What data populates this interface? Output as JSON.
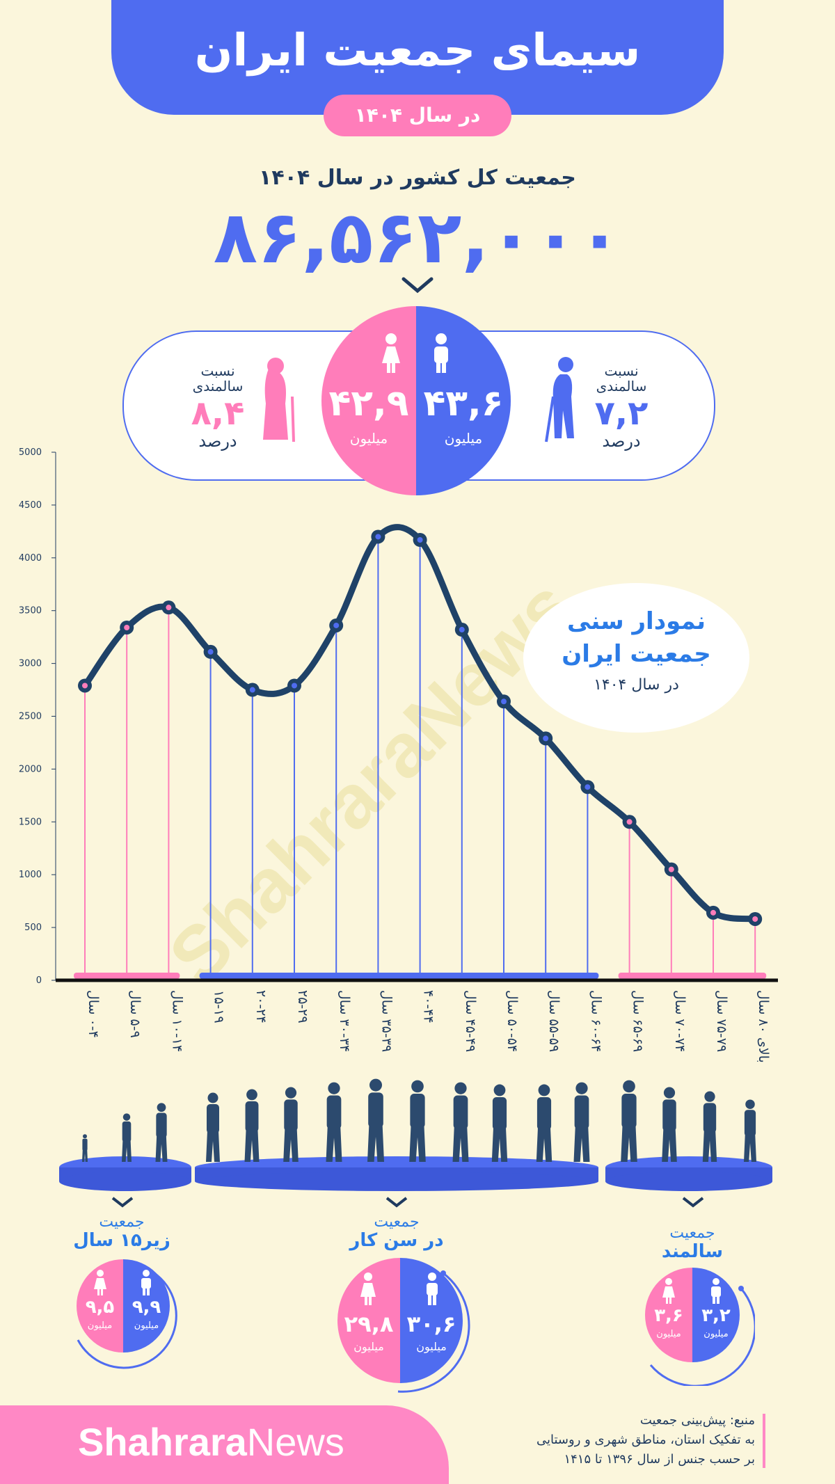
{
  "header": {
    "title": "سیمای جمعیت ایران",
    "subtitle": "در سال ۱۴۰۴"
  },
  "total": {
    "label": "جمعیت کل کشور در سال ۱۴۰۴",
    "value": "۸۶,۵۶۲,۰۰۰"
  },
  "gender": {
    "male": {
      "value": "۴۳,۶",
      "unit": "میلیون",
      "color": "#4f6cf0"
    },
    "female": {
      "value": "۴۲,۹",
      "unit": "میلیون",
      "color": "#ff7dba"
    }
  },
  "elderly_ratio": {
    "label_line1": "نسبت",
    "label_line2": "سالمندی",
    "male_value": "۷,۲",
    "female_value": "۸,۴",
    "unit": "درصد"
  },
  "chart_callout": {
    "line1": "نمودار سنی",
    "line2": "جمعیت ایران",
    "line3": "در سال ۱۴۰۴"
  },
  "watermark": "ShahraraNews",
  "chart_data": {
    "type": "line",
    "categories": [
      "۰-۴ سال",
      "۵-۹ سال",
      "۱۰-۱۴ سال",
      "۱۵-۱۹",
      "۲۰-۲۴",
      "۲۵-۲۹",
      "۳۰-۳۴ سال",
      "۳۵-۳۹ سال",
      "۴۰-۴۴",
      "۴۵-۴۹ سال",
      "۵۰-۵۴ سال",
      "۵۵-۵۹ سال",
      "۶۰-۶۴ سال",
      "۶۵-۶۹ سال",
      "۷۰-۷۴ سال",
      "۷۵-۷۹ سال",
      "بالای ۸۰ سال"
    ],
    "values": [
      2790,
      3340,
      3530,
      3110,
      2750,
      2790,
      3360,
      4200,
      4170,
      3320,
      2640,
      2290,
      1830,
      1500,
      1050,
      640,
      580
    ],
    "group": [
      "child",
      "child",
      "child",
      "work",
      "work",
      "work",
      "work",
      "work",
      "work",
      "work",
      "work",
      "work",
      "work",
      "elder",
      "elder",
      "elder",
      "elder"
    ],
    "yticks": [
      0,
      500,
      1000,
      1500,
      2000,
      2500,
      3000,
      3500,
      4000,
      4500,
      5000
    ],
    "ylim": [
      0,
      5000
    ],
    "colors": {
      "child": "#ff7dba",
      "work": "#4f6cf0",
      "elder": "#ff7dba",
      "line": "#1f4268"
    }
  },
  "groups": [
    {
      "title1": "جمعیت",
      "title2": "زیر۱۵ سال",
      "male": "۹,۹",
      "female": "۹,۵",
      "unit": "میلیون"
    },
    {
      "title1": "جمعیت",
      "title2": "در سن کار",
      "male": "۳۰,۶",
      "female": "۲۹,۸",
      "unit": "میلیون"
    },
    {
      "title1": "جمعیت",
      "title2": "سالمند",
      "male": "۳,۲",
      "female": "۳,۶",
      "unit": "میلیون"
    }
  ],
  "footer": {
    "brand_bold": "Shahrara",
    "brand_light": "News",
    "source_line1": "منبع: پیش‌بینی جمعیت",
    "source_line2": "به تفکیک استان، مناطق شهری و روستایی",
    "source_line3": "بر حسب جنس از سال ۱۳۹۶ تا ۱۴۱۵"
  }
}
